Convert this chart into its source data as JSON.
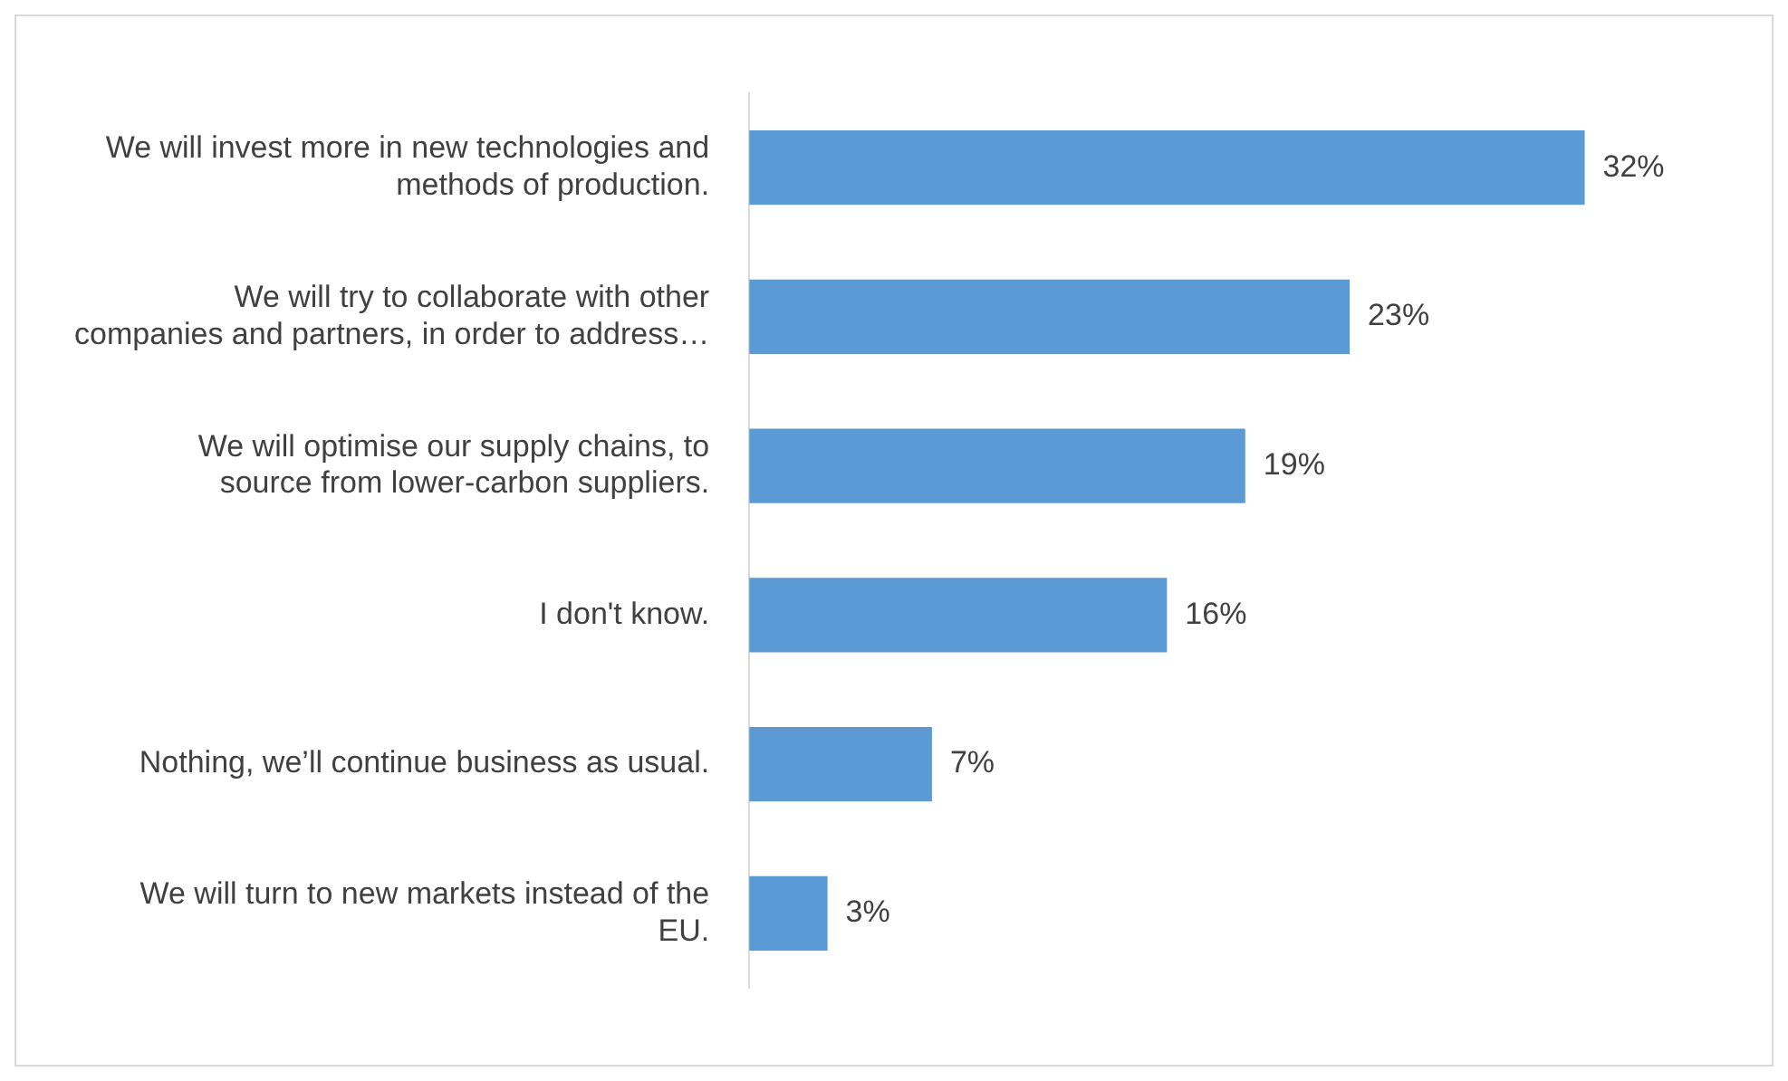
{
  "chart_data": {
    "type": "bar",
    "orientation": "horizontal",
    "categories": [
      "We will invest more in new technologies and methods of production.",
      "We will try to collaborate with other companies and partners, in order to address…",
      "We will optimise our supply chains, to source from lower-carbon suppliers.",
      "I don't know.",
      "Nothing, we’ll continue business as usual.",
      "We will turn to new markets instead of the EU."
    ],
    "values": [
      32,
      23,
      19,
      16,
      7,
      3
    ],
    "value_labels": [
      "32%",
      "23%",
      "19%",
      "16%",
      "7%",
      "3%"
    ],
    "color": "#5b9bd5",
    "legend": false
  }
}
